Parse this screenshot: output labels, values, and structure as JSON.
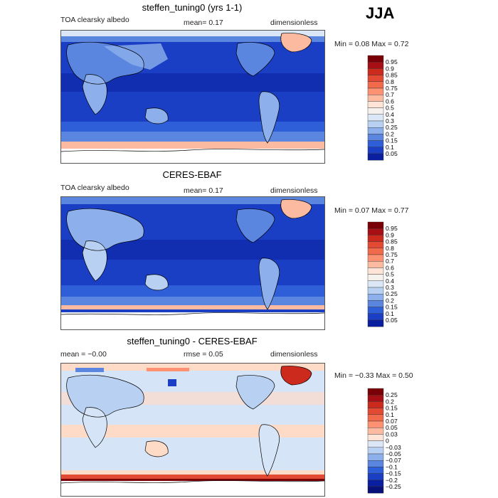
{
  "season": "JJA",
  "panels": [
    {
      "title": "steffen_tuning0 (yrs 1-1)",
      "left_label": "TOA clearsky albedo",
      "mid_label": "mean=   0.17",
      "right_label": "dimensionless",
      "minmax": "Min =    0.08  Max =    0.72",
      "colorbar": {
        "levels": [
          "0.95",
          "0.9",
          "0.85",
          "0.8",
          "0.75",
          "0.7",
          "0.6",
          "0.5",
          "0.4",
          "0.3",
          "0.25",
          "0.2",
          "0.15",
          "0.1",
          "0.05"
        ],
        "colors": [
          "#7a0008",
          "#a50f15",
          "#cb2a1d",
          "#e34a33",
          "#f16a4b",
          "#fc9272",
          "#fcbba1",
          "#fee4d6",
          "#f4f1ef",
          "#dbe7f7",
          "#b8d0f2",
          "#8db0ec",
          "#5b86e0",
          "#2f5fd8",
          "#1b3fc4",
          "#0a1fa0"
        ]
      }
    },
    {
      "title": "CERES-EBAF",
      "left_label": "TOA clearsky albedo",
      "mid_label": "mean=   0.17",
      "right_label": "dimensionless",
      "minmax": "Min =    0.07  Max =    0.77",
      "colorbar": {
        "levels": [
          "0.95",
          "0.9",
          "0.85",
          "0.8",
          "0.75",
          "0.7",
          "0.6",
          "0.5",
          "0.4",
          "0.3",
          "0.25",
          "0.2",
          "0.15",
          "0.1",
          "0.05"
        ],
        "colors": [
          "#7a0008",
          "#a50f15",
          "#cb2a1d",
          "#e34a33",
          "#f16a4b",
          "#fc9272",
          "#fcbba1",
          "#fee4d6",
          "#f4f1ef",
          "#dbe7f7",
          "#b8d0f2",
          "#8db0ec",
          "#5b86e0",
          "#2f5fd8",
          "#1b3fc4",
          "#0a1fa0"
        ]
      }
    },
    {
      "title": "steffen_tuning0 - CERES-EBAF",
      "left_label": "mean =   −0.00",
      "mid_label": "rmse =    0.05",
      "right_label": "dimensionless",
      "minmax": "Min =  −0.33  Max =    0.50",
      "colorbar": {
        "levels": [
          "0.25",
          "0.2",
          "0.15",
          "0.1",
          "0.07",
          "0.05",
          "0.03",
          "0",
          "−0.03",
          "−0.05",
          "−0.07",
          "−0.1",
          "−0.15",
          "−0.2",
          "−0.25"
        ],
        "colors": [
          "#7a0008",
          "#a50f15",
          "#cb2a1d",
          "#e34a33",
          "#f16a4b",
          "#fc9272",
          "#fcbba1",
          "#fee4d6",
          "#dbe7f7",
          "#b8d0f2",
          "#8db0ec",
          "#5b86e0",
          "#2f5fd8",
          "#1b3fc4",
          "#0a1fa0",
          "#08107a"
        ]
      }
    }
  ],
  "chart_data": {
    "type": "heatmap",
    "description_units": "TOA clearsky albedo (dimensionless)",
    "colors": {
      "ocean_low": "#1b3fc4",
      "ocean_mid": "#2f5fd8",
      "land_mid": "#5b86e0",
      "land_bright": "#b8d0f2",
      "ice": "#fcbba1",
      "diff_pos_light": "#fddbc7",
      "diff_neg_light": "#d6e4f7"
    }
  }
}
